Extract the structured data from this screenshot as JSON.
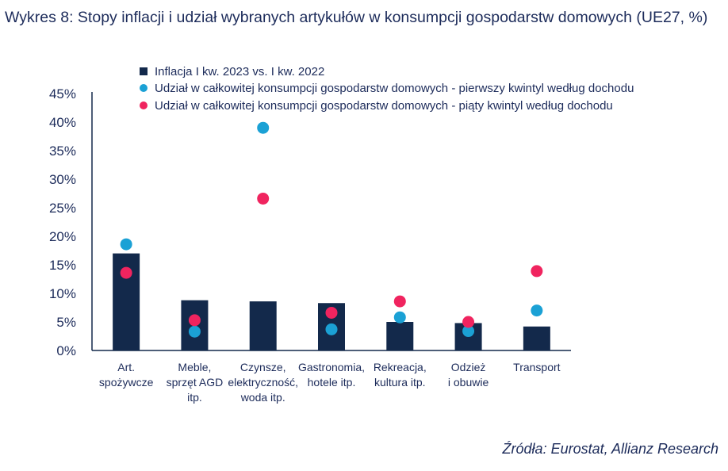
{
  "title": "Wykres 8: Stopy inflacji i udział wybranych artykułów w konsumpcji gospodarstw domowych (UE27, %)",
  "source": "Źródła: Eurostat, Allianz Research",
  "colors": {
    "bar": "#13294b",
    "q1": "#1ba1d5",
    "q5": "#f0245f",
    "text": "#1c2b5a",
    "axis": "#13294b"
  },
  "chart_data": {
    "type": "bar",
    "categories": [
      [
        "Art.",
        "spożywcze"
      ],
      [
        "Meble,",
        "sprzęt AGD",
        "itp."
      ],
      [
        "Czynsze,",
        "elektryczność,",
        "woda itp."
      ],
      [
        "Gastronomia,",
        "hotele itp."
      ],
      [
        "Rekreacja,",
        "kultura itp."
      ],
      [
        "Odzież",
        "i obuwie"
      ],
      [
        "Transport"
      ]
    ],
    "series": [
      {
        "name": "Inflacja I kw. 2023 vs. I kw. 2022",
        "kind": "bar",
        "values": [
          17.0,
          8.8,
          8.6,
          8.3,
          5.0,
          4.8,
          4.2
        ]
      },
      {
        "name": "Udział w całkowitej konsumpcji gospodarstw domowych - pierwszy kwintyl według dochodu",
        "kind": "dot",
        "values": [
          18.6,
          3.3,
          39.0,
          3.7,
          5.8,
          3.4,
          7.0
        ]
      },
      {
        "name": "Udział w całkowitej konsumpcji gospodarstw domowych - piąty kwintyl według dochodu",
        "kind": "dot",
        "values": [
          13.6,
          5.3,
          26.6,
          6.6,
          8.6,
          5.0,
          13.9
        ]
      }
    ],
    "yticks": [
      "0%",
      "5%",
      "10%",
      "15%",
      "20%",
      "25%",
      "30%",
      "35%",
      "40%",
      "45%"
    ],
    "ylim": [
      0,
      45
    ],
    "legend_position": "top"
  }
}
